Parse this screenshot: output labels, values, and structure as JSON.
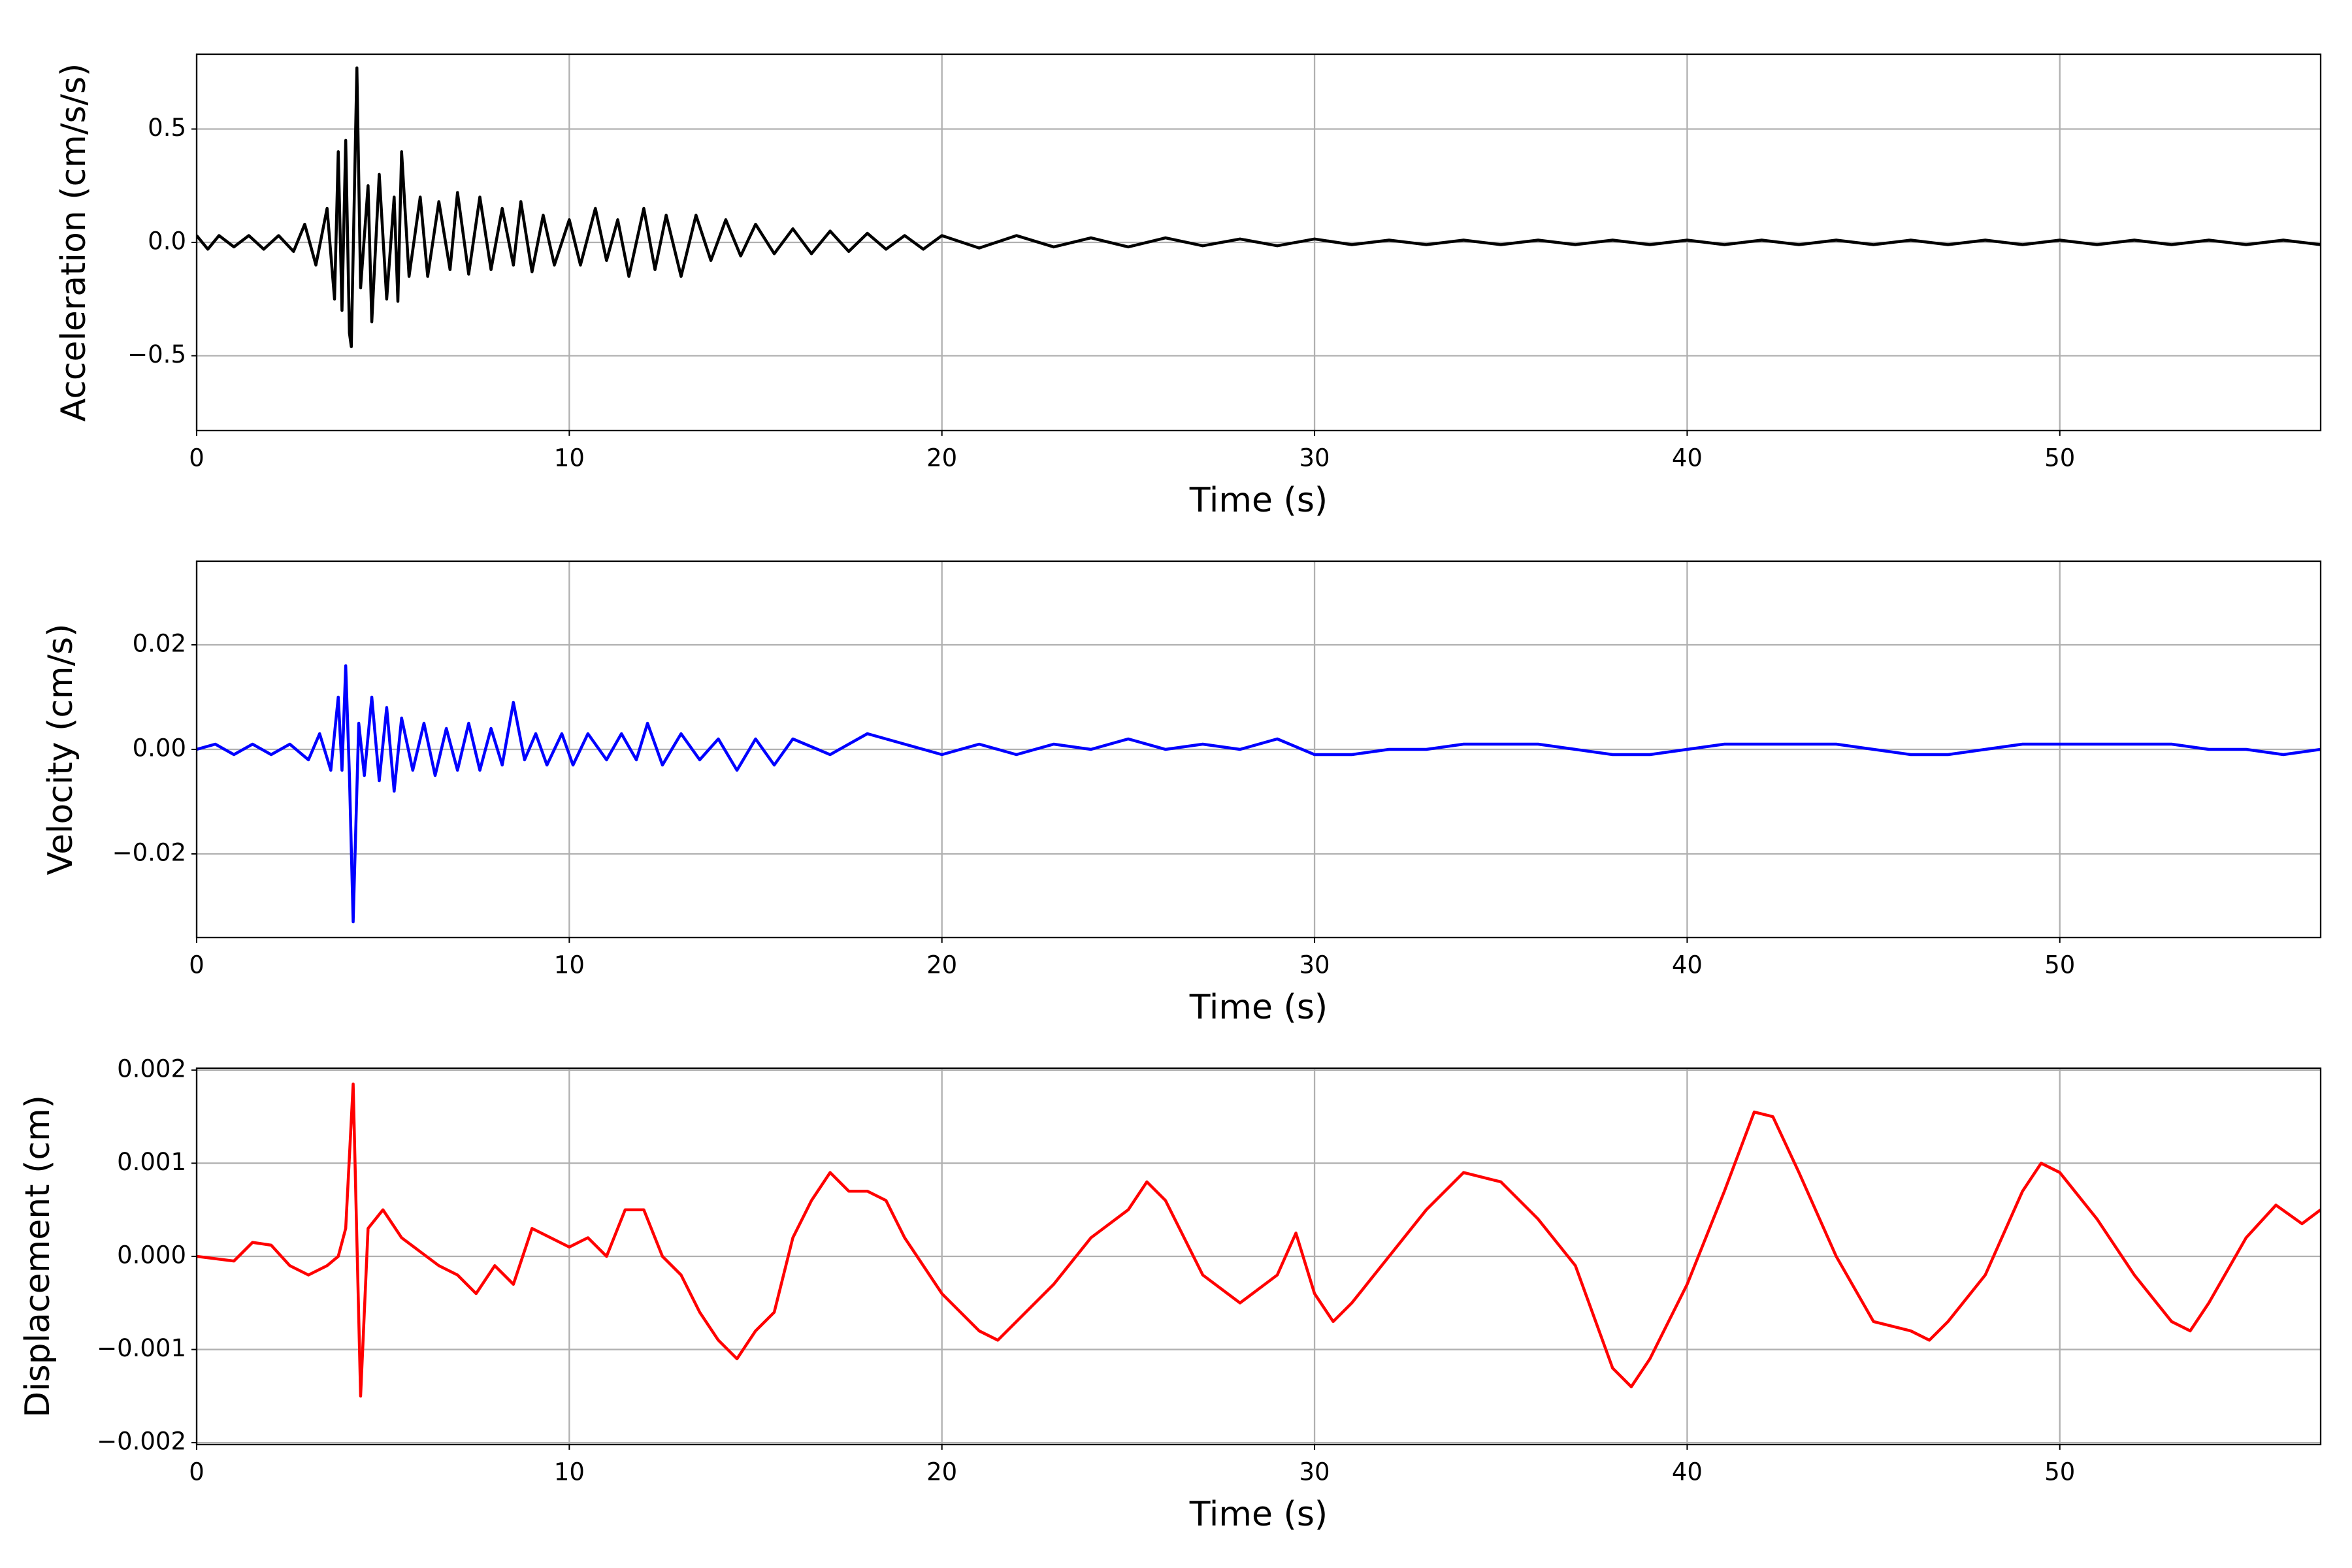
{
  "chart_data": [
    {
      "type": "line",
      "xlabel": "Time (s)",
      "ylabel": "Acceleration (cm/s/s)",
      "color": "#000000",
      "grid": true,
      "xlim": [
        0,
        57
      ],
      "xticks": [
        0,
        10,
        20,
        30,
        40,
        50
      ],
      "ylim": [
        -0.83,
        0.83
      ],
      "yticks": [
        {
          "value": -0.5,
          "label": "−0.5"
        },
        {
          "value": 0,
          "label": "0.0"
        },
        {
          "value": 0.5,
          "label": "0.5"
        }
      ],
      "x": [
        0,
        0.3,
        0.6,
        1,
        1.4,
        1.8,
        2.2,
        2.6,
        2.9,
        3.2,
        3.5,
        3.7,
        3.8,
        3.9,
        4.0,
        4.1,
        4.15,
        4.3,
        4.4,
        4.6,
        4.7,
        4.9,
        5.1,
        5.3,
        5.4,
        5.5,
        5.7,
        6.0,
        6.2,
        6.5,
        6.8,
        7.0,
        7.3,
        7.6,
        7.9,
        8.2,
        8.5,
        8.7,
        9.0,
        9.3,
        9.6,
        10.0,
        10.3,
        10.7,
        11.0,
        11.3,
        11.6,
        12.0,
        12.3,
        12.6,
        13.0,
        13.4,
        13.8,
        14.2,
        14.6,
        15.0,
        15.5,
        16.0,
        16.5,
        17.0,
        17.5,
        18,
        18.5,
        19,
        19.5,
        20,
        21,
        22,
        23,
        24,
        25,
        26,
        27,
        28,
        29,
        30,
        31,
        32,
        33,
        34,
        35,
        36,
        37,
        38,
        39,
        40,
        41,
        42,
        43,
        44,
        45,
        46,
        47,
        48,
        49,
        50,
        51,
        52,
        53,
        54,
        55,
        56,
        57
      ],
      "values": [
        0.03,
        -0.03,
        0.03,
        -0.02,
        0.03,
        -0.03,
        0.03,
        -0.04,
        0.08,
        -0.1,
        0.15,
        -0.25,
        0.4,
        -0.3,
        0.45,
        -0.4,
        -0.46,
        0.77,
        -0.2,
        0.25,
        -0.35,
        0.3,
        -0.25,
        0.2,
        -0.26,
        0.4,
        -0.15,
        0.2,
        -0.15,
        0.18,
        -0.12,
        0.22,
        -0.14,
        0.2,
        -0.12,
        0.15,
        -0.1,
        0.18,
        -0.13,
        0.12,
        -0.1,
        0.1,
        -0.1,
        0.15,
        -0.08,
        0.1,
        -0.15,
        0.15,
        -0.12,
        0.12,
        -0.15,
        0.12,
        -0.08,
        0.1,
        -0.06,
        0.08,
        -0.05,
        0.06,
        -0.05,
        0.05,
        -0.04,
        0.04,
        -0.03,
        0.03,
        -0.03,
        0.03,
        -0.025,
        0.03,
        -0.02,
        0.02,
        -0.02,
        0.02,
        -0.015,
        0.015,
        -0.015,
        0.015,
        -0.01,
        0.01,
        -0.01,
        0.01,
        -0.01,
        0.01,
        -0.01,
        0.01,
        -0.01,
        0.01,
        -0.01,
        0.01,
        -0.01,
        0.01,
        -0.01,
        0.01,
        -0.01,
        0.01,
        -0.01,
        0.01,
        -0.01,
        0.01,
        -0.01,
        0.01,
        -0.01,
        0.01,
        -0.01
      ]
    },
    {
      "type": "line",
      "xlabel": "Time (s)",
      "ylabel": "Velocity (cm/s)",
      "color": "#0000ff",
      "grid": true,
      "xlim": [
        0,
        57
      ],
      "xticks": [
        0,
        10,
        20,
        30,
        40,
        50
      ],
      "ylim": [
        -0.036,
        0.036
      ],
      "yticks": [
        {
          "value": -0.02,
          "label": "−0.02"
        },
        {
          "value": 0,
          "label": "0.00"
        },
        {
          "value": 0.02,
          "label": "0.02"
        }
      ],
      "x": [
        0,
        0.5,
        1,
        1.5,
        2,
        2.5,
        3,
        3.3,
        3.6,
        3.8,
        3.9,
        4.0,
        4.1,
        4.2,
        4.35,
        4.5,
        4.7,
        4.9,
        5.1,
        5.3,
        5.5,
        5.8,
        6.1,
        6.4,
        6.7,
        7,
        7.3,
        7.6,
        7.9,
        8.2,
        8.5,
        8.8,
        9.1,
        9.4,
        9.8,
        10.1,
        10.5,
        11,
        11.4,
        11.8,
        12.1,
        12.5,
        13,
        13.5,
        14,
        14.5,
        15,
        15.5,
        16,
        17,
        18,
        19,
        20,
        21,
        22,
        23,
        24,
        25,
        26,
        27,
        28,
        29,
        30,
        31,
        32,
        33,
        34,
        35,
        36,
        37,
        38,
        39,
        40,
        41,
        42,
        43,
        44,
        45,
        46,
        47,
        48,
        49,
        50,
        51,
        52,
        53,
        54,
        55,
        56,
        57
      ],
      "values": [
        0,
        0.001,
        -0.001,
        0.001,
        -0.001,
        0.001,
        -0.002,
        0.003,
        -0.004,
        0.01,
        -0.004,
        0.016,
        -0.005,
        -0.033,
        0.005,
        -0.005,
        0.01,
        -0.006,
        0.008,
        -0.008,
        0.006,
        -0.004,
        0.005,
        -0.005,
        0.004,
        -0.004,
        0.005,
        -0.004,
        0.004,
        -0.003,
        0.009,
        -0.002,
        0.003,
        -0.003,
        0.003,
        -0.003,
        0.003,
        -0.002,
        0.003,
        -0.002,
        0.005,
        -0.003,
        0.003,
        -0.002,
        0.002,
        -0.004,
        0.002,
        -0.003,
        0.002,
        -0.001,
        0.003,
        0.001,
        -0.001,
        0.001,
        -0.001,
        0.001,
        0,
        0.002,
        0,
        0.001,
        0,
        0.002,
        -0.001,
        -0.001,
        0,
        0,
        0.001,
        0.001,
        0.001,
        0,
        -0.001,
        -0.001,
        0,
        0.001,
        0.001,
        0.001,
        0.001,
        0,
        -0.001,
        -0.001,
        0,
        0.001,
        0.001,
        0.001,
        0.001,
        0.001,
        0,
        0,
        -0.001,
        0
      ]
    },
    {
      "type": "line",
      "xlabel": "Time (s)",
      "ylabel": "Displacement (cm)",
      "color": "#ff0000",
      "grid": true,
      "xlim": [
        0,
        57
      ],
      "xticks": [
        0,
        10,
        20,
        30,
        40,
        50
      ],
      "ylim": [
        -0.00202,
        0.00202
      ],
      "yticks": [
        {
          "value": -0.002,
          "label": "−0.002"
        },
        {
          "value": -0.001,
          "label": "−0.001"
        },
        {
          "value": 0,
          "label": "0.000"
        },
        {
          "value": 0.001,
          "label": "0.001"
        },
        {
          "value": 0.002,
          "label": "0.002"
        }
      ],
      "x": [
        0,
        1,
        1.5,
        2,
        2.5,
        3,
        3.5,
        3.8,
        4.0,
        4.2,
        4.4,
        4.6,
        5,
        5.5,
        6,
        6.5,
        7,
        7.5,
        8,
        8.5,
        9,
        9.5,
        10,
        10.5,
        11,
        11.5,
        12,
        12.5,
        13,
        13.5,
        14,
        14.5,
        15,
        15.5,
        16,
        16.5,
        17,
        17.5,
        18,
        18.5,
        19,
        20,
        21,
        21.5,
        22,
        23,
        24,
        25,
        25.5,
        26,
        27,
        28,
        29,
        29.5,
        30,
        30.5,
        31,
        32,
        33,
        34,
        35,
        36,
        37,
        38,
        38.5,
        39,
        40,
        41,
        41.8,
        42.3,
        43,
        44,
        45,
        46,
        46.5,
        47,
        48,
        49,
        49.5,
        50,
        51,
        52,
        53,
        53.5,
        54,
        55,
        55.8,
        56.5,
        57
      ],
      "values": [
        0,
        -5e-05,
        0.00015,
        0.00012,
        -0.0001,
        -0.0002,
        -0.0001,
        0,
        0.0003,
        0.00185,
        -0.0015,
        0.0003,
        0.0005,
        0.0002,
        5e-05,
        -0.0001,
        -0.0002,
        -0.0004,
        -0.0001,
        -0.0003,
        0.0003,
        0.0002,
        0.0001,
        0.0002,
        0,
        0.0005,
        0.0005,
        0,
        -0.0002,
        -0.0006,
        -0.0009,
        -0.0011,
        -0.0008,
        -0.0006,
        0.0002,
        0.0006,
        0.0009,
        0.0007,
        0.0007,
        0.0006,
        0.0002,
        -0.0004,
        -0.0008,
        -0.0009,
        -0.0007,
        -0.0003,
        0.0002,
        0.0005,
        0.0008,
        0.0006,
        -0.0002,
        -0.0005,
        -0.0002,
        0.00025,
        -0.0004,
        -0.0007,
        -0.0005,
        0,
        0.0005,
        0.0009,
        0.0008,
        0.0004,
        -0.0001,
        -0.0012,
        -0.0014,
        -0.0011,
        -0.0003,
        0.0007,
        0.00155,
        0.0015,
        0.0009,
        0,
        -0.0007,
        -0.0008,
        -0.0009,
        -0.0007,
        -0.0002,
        0.0007,
        0.001,
        0.0009,
        0.0004,
        -0.0002,
        -0.0007,
        -0.0008,
        -0.0005,
        0.0002,
        0.00055,
        0.00035,
        0.0005
      ]
    }
  ]
}
